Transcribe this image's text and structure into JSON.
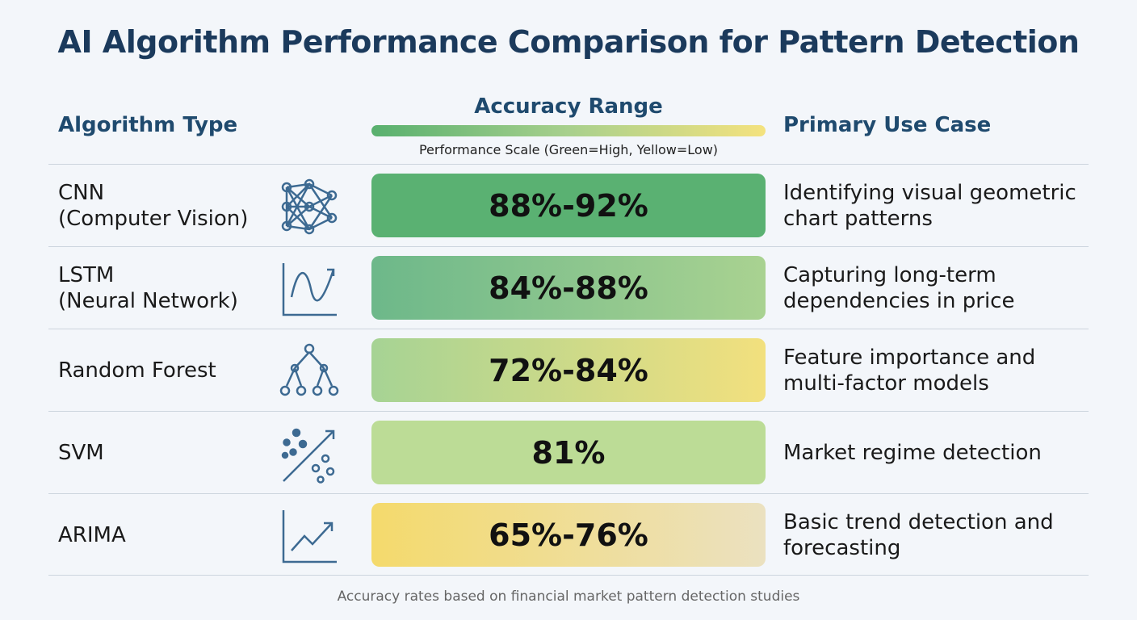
{
  "header": {
    "title": "AI Algorithm Performance Comparison for Pattern Detection"
  },
  "columns": {
    "algorithm": "Algorithm Type",
    "accuracy": "Accuracy Range",
    "scale_note": "Performance Scale (Green=High, Yellow=Low)",
    "use_case": "Primary Use Case"
  },
  "rows": [
    {
      "name": "CNN",
      "detail": "(Computer Vision)",
      "accuracy": "88%-92%",
      "use_case": "Identifying visual geometric chart patterns"
    },
    {
      "name": "LSTM",
      "detail": "(Neural Network)",
      "accuracy": "84%-88%",
      "use_case": "Capturing long-term dependencies in price"
    },
    {
      "name": "Random Forest",
      "accuracy": "72%-84%",
      "use_case": "Feature importance and multi-factor models"
    },
    {
      "name": "SVM",
      "accuracy": "81%",
      "use_case": "Market regime detection"
    },
    {
      "name": "ARIMA",
      "accuracy": "65%-76%",
      "use_case": "Basic trend detection and forecasting"
    }
  ],
  "footnote": "Accuracy rates based on financial market pattern detection studies"
}
